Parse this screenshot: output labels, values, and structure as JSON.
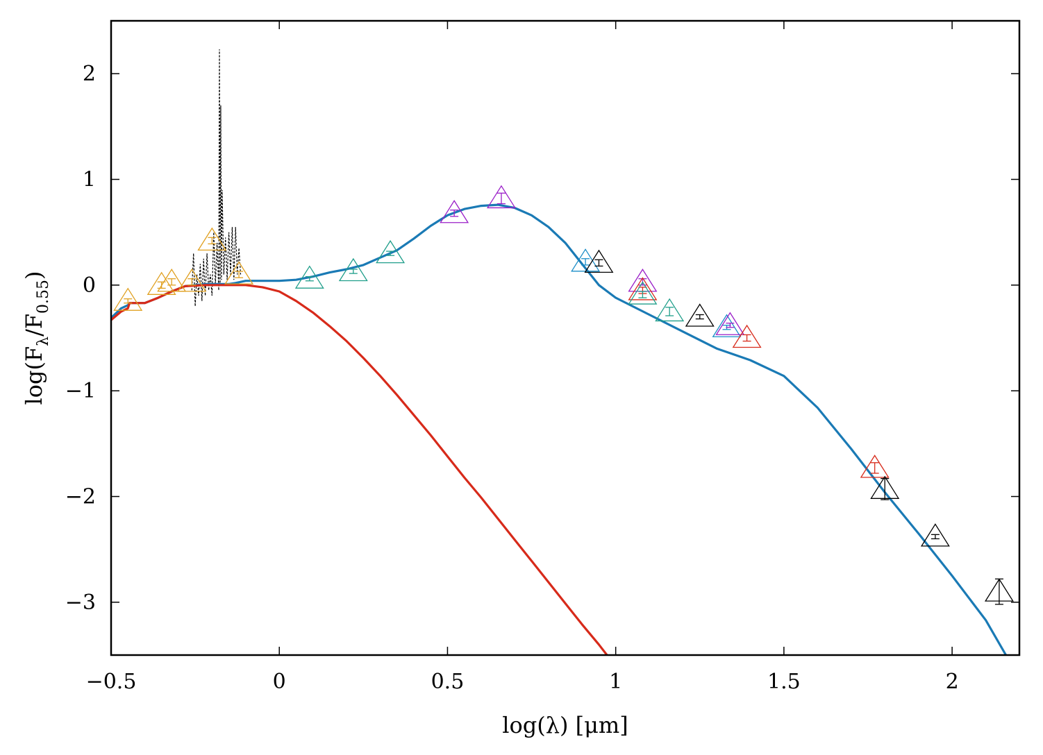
{
  "chart_data": {
    "type": "scatter",
    "title": "",
    "xlabel": "log(λ) [μm]",
    "ylabel_parts": {
      "lead": "log(F",
      "num_sub": "λ",
      "mid": "/F",
      "den_sub": "0.55",
      "tail": ")"
    },
    "xlim": [
      -0.5,
      2.2
    ],
    "ylim": [
      -3.5,
      2.5
    ],
    "xticks": [
      -0.5,
      0,
      0.5,
      1,
      1.5,
      2
    ],
    "xtick_labels": [
      "−0.5",
      "0",
      "0.5",
      "1",
      "1.5",
      "2"
    ],
    "yticks": [
      -3,
      -2,
      -1,
      0,
      1,
      2
    ],
    "ytick_labels": [
      "−3",
      "−2",
      "−1",
      "0",
      "1",
      "2"
    ],
    "grid": false,
    "lines": [
      {
        "name": "blue-model",
        "color": "#1a7ab5",
        "points": [
          [
            -0.5,
            -0.31
          ],
          [
            -0.47,
            -0.22
          ],
          [
            -0.45,
            -0.19
          ],
          [
            -0.445,
            -0.17
          ],
          [
            -0.4,
            -0.17
          ],
          [
            -0.36,
            -0.12
          ],
          [
            -0.32,
            -0.06
          ],
          [
            -0.28,
            -0.01
          ],
          [
            -0.22,
            0.01
          ],
          [
            -0.15,
            0.01
          ],
          [
            -0.13,
            0.02
          ],
          [
            -0.1,
            0.04
          ],
          [
            -0.05,
            0.04
          ],
          [
            0,
            0.04
          ],
          [
            0.05,
            0.05
          ],
          [
            0.1,
            0.08
          ],
          [
            0.15,
            0.12
          ],
          [
            0.2,
            0.15
          ],
          [
            0.25,
            0.19
          ],
          [
            0.3,
            0.26
          ],
          [
            0.35,
            0.33
          ],
          [
            0.4,
            0.44
          ],
          [
            0.45,
            0.56
          ],
          [
            0.5,
            0.66
          ],
          [
            0.55,
            0.72
          ],
          [
            0.6,
            0.75
          ],
          [
            0.65,
            0.76
          ],
          [
            0.7,
            0.73
          ],
          [
            0.75,
            0.66
          ],
          [
            0.8,
            0.55
          ],
          [
            0.85,
            0.4
          ],
          [
            0.9,
            0.2
          ],
          [
            0.95,
            0.0
          ],
          [
            1.0,
            -0.12
          ],
          [
            1.1,
            -0.28
          ],
          [
            1.2,
            -0.44
          ],
          [
            1.3,
            -0.6
          ],
          [
            1.4,
            -0.71
          ],
          [
            1.5,
            -0.86
          ],
          [
            1.55,
            -1.01
          ],
          [
            1.6,
            -1.16
          ],
          [
            1.7,
            -1.55
          ],
          [
            1.8,
            -1.96
          ],
          [
            1.9,
            -2.35
          ],
          [
            2.0,
            -2.75
          ],
          [
            2.1,
            -3.17
          ],
          [
            2.16,
            -3.5
          ]
        ]
      },
      {
        "name": "red-photosphere",
        "color": "#d72a1a",
        "points": [
          [
            -0.5,
            -0.33
          ],
          [
            -0.47,
            -0.25
          ],
          [
            -0.45,
            -0.22
          ],
          [
            -0.445,
            -0.17
          ],
          [
            -0.4,
            -0.17
          ],
          [
            -0.36,
            -0.12
          ],
          [
            -0.32,
            -0.06
          ],
          [
            -0.28,
            -0.01
          ],
          [
            -0.22,
            0.0
          ],
          [
            -0.15,
            0.0
          ],
          [
            -0.1,
            0.0
          ],
          [
            -0.05,
            -0.02
          ],
          [
            0,
            -0.06
          ],
          [
            0.05,
            -0.15
          ],
          [
            0.1,
            -0.26
          ],
          [
            0.15,
            -0.39
          ],
          [
            0.2,
            -0.53
          ],
          [
            0.25,
            -0.69
          ],
          [
            0.3,
            -0.86
          ],
          [
            0.35,
            -1.04
          ],
          [
            0.4,
            -1.23
          ],
          [
            0.45,
            -1.42
          ],
          [
            0.5,
            -1.62
          ],
          [
            0.55,
            -1.82
          ],
          [
            0.6,
            -2.01
          ],
          [
            0.65,
            -2.21
          ],
          [
            0.7,
            -2.41
          ],
          [
            0.75,
            -2.61
          ],
          [
            0.8,
            -2.81
          ],
          [
            0.85,
            -3.01
          ],
          [
            0.9,
            -3.21
          ],
          [
            0.95,
            -3.4
          ],
          [
            0.974,
            -3.5
          ]
        ]
      }
    ],
    "spectrum": {
      "name": "iue-spectrum",
      "color": "#000000",
      "points": [
        [
          -0.26,
          -0.05
        ],
        [
          -0.255,
          0.3
        ],
        [
          -0.25,
          -0.2
        ],
        [
          -0.245,
          0.1
        ],
        [
          -0.24,
          -0.1
        ],
        [
          -0.235,
          0.2
        ],
        [
          -0.23,
          -0.15
        ],
        [
          -0.225,
          0.25
        ],
        [
          -0.22,
          -0.1
        ],
        [
          -0.215,
          0.3
        ],
        [
          -0.21,
          -0.05
        ],
        [
          -0.205,
          0.1
        ],
        [
          -0.2,
          -0.1
        ],
        [
          -0.195,
          0.5
        ],
        [
          -0.19,
          0.0
        ],
        [
          -0.185,
          0.4
        ],
        [
          -0.18,
          -0.05
        ],
        [
          -0.178,
          2.23
        ],
        [
          -0.176,
          0.0
        ],
        [
          -0.174,
          1.7
        ],
        [
          -0.172,
          0.05
        ],
        [
          -0.17,
          0.9
        ],
        [
          -0.165,
          0.1
        ],
        [
          -0.16,
          0.45
        ],
        [
          -0.155,
          0.05
        ],
        [
          -0.15,
          0.5
        ],
        [
          -0.145,
          0.1
        ],
        [
          -0.14,
          0.55
        ],
        [
          -0.135,
          0.05
        ],
        [
          -0.13,
          0.55
        ],
        [
          -0.125,
          0.1
        ],
        [
          -0.12,
          0.35
        ],
        [
          -0.115,
          0.1
        ]
      ]
    },
    "markers": [
      {
        "x": -0.45,
        "y": -0.15,
        "err": 0.02,
        "color": "#e0a020"
      },
      {
        "x": -0.35,
        "y": 0.0,
        "err": 0.03,
        "color": "#e0a020"
      },
      {
        "x": -0.32,
        "y": 0.03,
        "err": 0.03,
        "color": "#e0a020"
      },
      {
        "x": -0.26,
        "y": 0.03,
        "err": 0.03,
        "color": "#e0a020"
      },
      {
        "x": -0.2,
        "y": 0.42,
        "err": 0.03,
        "color": "#e0a020"
      },
      {
        "x": -0.12,
        "y": 0.1,
        "err": 0.03,
        "color": "#e0a020"
      },
      {
        "x": 0.09,
        "y": 0.06,
        "err": 0.02,
        "color": "#1f9e8a"
      },
      {
        "x": 0.22,
        "y": 0.13,
        "err": 0.02,
        "color": "#1f9e8a"
      },
      {
        "x": 0.33,
        "y": 0.3,
        "err": 0.02,
        "color": "#1f9e8a"
      },
      {
        "x": 0.52,
        "y": 0.68,
        "err": 0.03,
        "color": "#9a1ec8"
      },
      {
        "x": 0.66,
        "y": 0.82,
        "err": 0.05,
        "color": "#9a1ec8"
      },
      {
        "x": 0.91,
        "y": 0.22,
        "err": 0.03,
        "color": "#1a8dc8"
      },
      {
        "x": 0.95,
        "y": 0.21,
        "err": 0.03,
        "color": "#000000"
      },
      {
        "x": 1.08,
        "y": 0.03,
        "err": 0.03,
        "color": "#9a1ec8"
      },
      {
        "x": 1.08,
        "y": -0.05,
        "err": 0.03,
        "color": "#d72a1a"
      },
      {
        "x": 1.08,
        "y": -0.09,
        "err": 0.03,
        "color": "#1f9e8a"
      },
      {
        "x": 1.16,
        "y": -0.25,
        "err": 0.04,
        "color": "#1f9e8a"
      },
      {
        "x": 1.25,
        "y": -0.3,
        "err": 0.02,
        "color": "#000000"
      },
      {
        "x": 1.33,
        "y": -0.4,
        "err": 0.02,
        "color": "#1a8dc8"
      },
      {
        "x": 1.34,
        "y": -0.38,
        "err": 0.02,
        "color": "#9a1ec8"
      },
      {
        "x": 1.39,
        "y": -0.5,
        "err": 0.03,
        "color": "#d72a1a"
      },
      {
        "x": 1.77,
        "y": -1.73,
        "err": 0.05,
        "color": "#d72a1a"
      },
      {
        "x": 1.8,
        "y": -1.93,
        "err": 0.1,
        "color": "#000000"
      },
      {
        "x": 1.95,
        "y": -2.38,
        "err": 0.02,
        "color": "#000000"
      },
      {
        "x": 2.14,
        "y": -2.9,
        "err": 0.12,
        "color": "#000000"
      }
    ]
  }
}
